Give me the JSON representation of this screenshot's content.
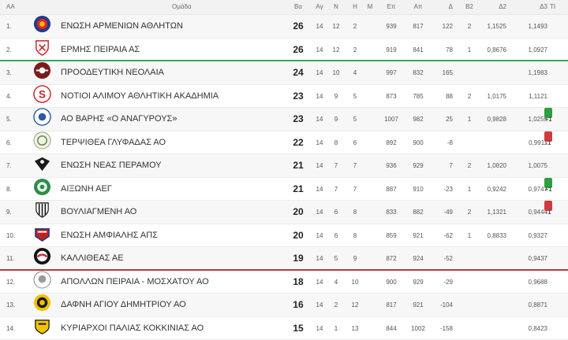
{
  "header": {
    "pos": "AA",
    "team": "Ομάδα",
    "pts": "Βα",
    "ag": "Αγ",
    "n": "Ν",
    "h": "Η",
    "m": "Μ",
    "ep": "Επ",
    "ap": "Απ",
    "d": "Δ",
    "b2": "Β2",
    "d2": "Δ2",
    "d3": "Δ3",
    "tl": "ΤΙ"
  },
  "colors": {
    "promotion_line": "#3aa556",
    "relegation_line": "#b03a3a",
    "badge_up": "#2e9e3e",
    "badge_down": "#d23b3b"
  },
  "rows": [
    {
      "pos": "1.",
      "team": "ΕΝΩΣΗ ΑΡΜΕΝΙΩΝ ΑΘΛΗΤΩΝ",
      "pts": "26",
      "ag": "14",
      "n": "12",
      "h": "2",
      "ep": "939",
      "ap": "817",
      "d": "122",
      "b2": "2",
      "d2": "1,1525",
      "d3": "1,1493",
      "badge": "",
      "logo_icon": "armenians-crest-icon"
    },
    {
      "pos": "2.",
      "team": "ΕΡΜΗΣ ΠΕΙΡΑΙΑ ΑΣ",
      "pts": "26",
      "ag": "14",
      "n": "12",
      "h": "2",
      "ep": "919",
      "ap": "841",
      "d": "78",
      "b2": "1",
      "d2": "0,8676",
      "d3": "1,0927",
      "badge": "",
      "logo_icon": "ermis-shield-icon"
    },
    {
      "pos": "3.",
      "team": "ΠΡΟΟΔΕΥΤΙΚΗ ΝΕΟΛΑΙΑ",
      "pts": "24",
      "ag": "14",
      "n": "10",
      "h": "4",
      "ep": "997",
      "ap": "832",
      "d": "165",
      "b2": "",
      "d2": "",
      "d3": "1,1983",
      "badge": "",
      "logo_icon": "proodeftiki-crest-icon"
    },
    {
      "pos": "4.",
      "team": "ΝΟΤΙΟΙ ΑΛΙΜΟΥ ΑΘΛΗΤΙΚΗ ΑΚΑΔΗΜΙΑ",
      "pts": "23",
      "ag": "14",
      "n": "9",
      "h": "5",
      "ep": "873",
      "ap": "785",
      "d": "88",
      "b2": "2",
      "d2": "1,0175",
      "d3": "1,1121",
      "badge": "",
      "logo_icon": "notioi-s-icon"
    },
    {
      "pos": "5.",
      "team": "ΑΟ ΒΑΡΗΣ «Ο ΑΝΑΓΥΡΟΥΣ»",
      "pts": "23",
      "ag": "14",
      "n": "9",
      "h": "5",
      "ep": "1007",
      "ap": "982",
      "d": "25",
      "b2": "1",
      "d2": "0,9828",
      "d3": "1,0255",
      "badge": "+1",
      "logo_icon": "varis-badge-icon"
    },
    {
      "pos": "6.",
      "team": "ΤΕΡΨΙΘΕΑ ΓΛΥΦΑΔΑΣ ΑΟ",
      "pts": "22",
      "ag": "14",
      "n": "8",
      "h": "6",
      "ep": "892",
      "ap": "900",
      "d": "-8",
      "b2": "",
      "d2": "",
      "d3": "0,9911",
      "badge": "-1",
      "logo_icon": "terpsithea-badge-icon"
    },
    {
      "pos": "7.",
      "team": "ΕΝΩΣΗ ΝΕΑΣ ΠΕΡΑΜΟΥ",
      "pts": "21",
      "ag": "14",
      "n": "7",
      "h": "7",
      "ep": "936",
      "ap": "929",
      "d": "7",
      "b2": "2",
      "d2": "1,0820",
      "d3": "1,0075",
      "badge": "",
      "logo_icon": "eagle-crest-icon"
    },
    {
      "pos": "8.",
      "team": "ΑΙΞΩΝΗ ΑΕΓ",
      "pts": "21",
      "ag": "14",
      "n": "7",
      "h": "7",
      "ep": "887",
      "ap": "910",
      "d": "-23",
      "b2": "1",
      "d2": "0,9242",
      "d3": "0,9747",
      "badge": "+1",
      "logo_icon": "aixoni-badge-icon"
    },
    {
      "pos": "9.",
      "team": "ΒΟΥΛΙΑΓΜΕΝΗ ΑΟ",
      "pts": "20",
      "ag": "14",
      "n": "6",
      "h": "8",
      "ep": "833",
      "ap": "882",
      "d": "-49",
      "b2": "2",
      "d2": "1,1321",
      "d3": "0,9444",
      "badge": "-1",
      "logo_icon": "vouliagmeni-stripes-icon"
    },
    {
      "pos": "10.",
      "team": "ΕΝΩΣΗ ΑΜΦΙΑΛΗΣ ΑΠΣ",
      "pts": "20",
      "ag": "14",
      "n": "6",
      "h": "8",
      "ep": "859",
      "ap": "921",
      "d": "-62",
      "b2": "1",
      "d2": "0,8833",
      "d3": "0,9327",
      "badge": "",
      "logo_icon": "amfiali-crest-icon"
    },
    {
      "pos": "11.",
      "team": "ΚΑΛΛΙΘΕΑΣ ΑΕ",
      "pts": "19",
      "ag": "14",
      "n": "5",
      "h": "9",
      "ep": "872",
      "ap": "924",
      "d": "-52",
      "b2": "",
      "d2": "",
      "d3": "0,9437",
      "badge": "",
      "logo_icon": "kallithea-badge-icon"
    },
    {
      "pos": "12.",
      "team": "ΑΠΟΛΛΩΝ ΠΕΙΡΑΙΑ - ΜΟΣΧΑΤΟΥ ΑΟ",
      "pts": "18",
      "ag": "14",
      "n": "4",
      "h": "10",
      "ep": "900",
      "ap": "929",
      "d": "-29",
      "b2": "",
      "d2": "",
      "d3": "0,9688",
      "badge": "",
      "logo_icon": "apollon-head-icon"
    },
    {
      "pos": "13.",
      "team": "ΔΑΦΝΗ ΑΓΙΟΥ ΔΗΜΗΤΡΙΟΥ ΑΟ",
      "pts": "16",
      "ag": "14",
      "n": "2",
      "h": "12",
      "ep": "817",
      "ap": "921",
      "d": "-104",
      "b2": "",
      "d2": "",
      "d3": "0,8871",
      "badge": "",
      "logo_icon": "dafni-badge-icon"
    },
    {
      "pos": "14.",
      "team": "ΚΥΡΙΑΡΧΟΙ ΠΑΛΙΑΣ ΚΟΚΚΙΝΙΑΣ ΑΟ",
      "pts": "15",
      "ag": "14",
      "n": "1",
      "h": "13",
      "ep": "844",
      "ap": "1002",
      "d": "-158",
      "b2": "",
      "d2": "",
      "d3": "0,8423",
      "badge": "",
      "logo_icon": "kyriarxoi-badge-icon"
    }
  ]
}
